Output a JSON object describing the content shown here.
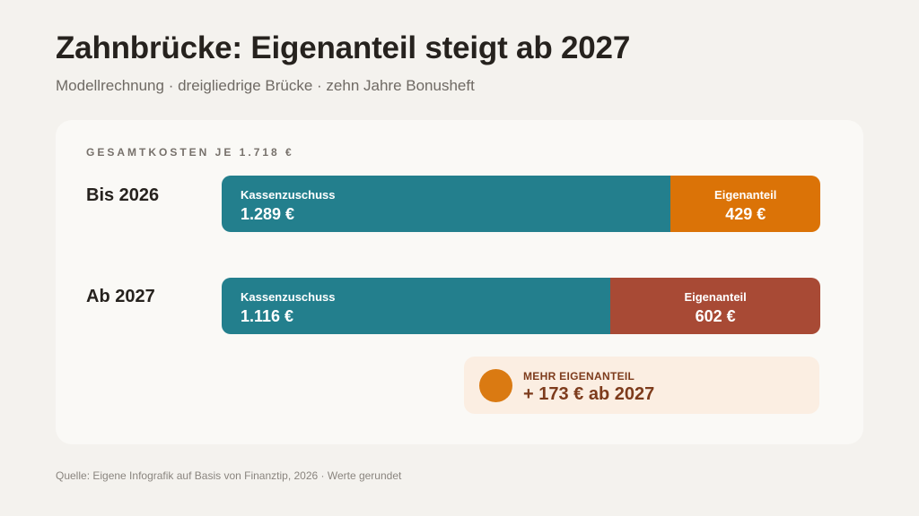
{
  "title": "Zahnbrücke: Eigenanteil steigt ab 2027",
  "subtitle": "Modellrechnung · dreigliedrige Brücke · zehn Jahre Bonusheft",
  "section_label": "GESAMTKOSTEN JE 1.718 €",
  "source": "Quelle: Eigene Infografik auf Basis von Finanztip, 2026 · Werte gerundet",
  "colors": {
    "kassenzuschuss": "#237f8d",
    "eigenanteil_2026": "#db7307",
    "eigenanteil_2027": "#a84a35",
    "callout_bg": "#fbeee2",
    "callout_dot": "#da7a12"
  },
  "chart_data": {
    "type": "bar",
    "orientation": "horizontal",
    "stacked": true,
    "total": 1718,
    "categories": [
      "Bis 2026",
      "Ab 2027"
    ],
    "series": [
      {
        "name": "Kassenzuschuss",
        "values": [
          1289,
          1116
        ],
        "labels": [
          "1.289 €",
          "1.116 €"
        ]
      },
      {
        "name": "Eigenanteil",
        "values": [
          429,
          602
        ],
        "labels": [
          "429 €",
          "602 €"
        ]
      }
    ],
    "grid": false
  },
  "callout": {
    "label": "MEHR EIGENANTEIL",
    "value": "+ 173 € ab 2027"
  }
}
